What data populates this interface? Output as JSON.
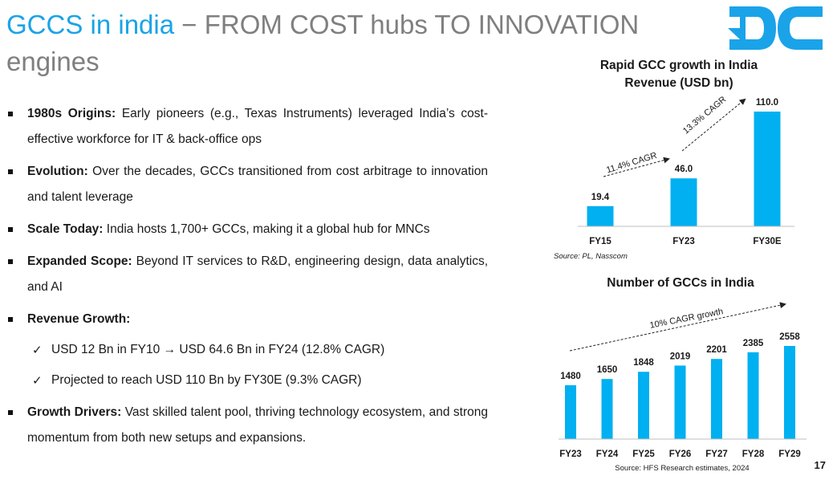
{
  "slide": {
    "title_accent": "GCCS in india",
    "title_dash": "−",
    "title_rest": "FROM COST hubs TO INNOVATION engines",
    "page_number": "17",
    "brand_color": "#1aa3e8"
  },
  "logo": {
    "icon": "dc-logo-icon"
  },
  "bullets": [
    {
      "label": "1980s Origins:",
      "text": " Early pioneers (e.g., Texas Instruments) leveraged India’s cost-effective workforce for IT & back-office ops"
    },
    {
      "label": "Evolution:",
      "text": " Over the decades, GCCs transitioned from cost arbitrage to innovation and talent leverage"
    },
    {
      "label": "Scale Today:",
      "text": " India hosts 1,700+ GCCs, making it a global hub for MNCs"
    },
    {
      "label": "Expanded Scope:",
      "text": " Beyond IT services to R&D, engineering design, data analytics, and AI"
    },
    {
      "label": "Revenue Growth:",
      "text": ""
    },
    {
      "label": "Growth Drivers:",
      "text": " Vast skilled talent pool, thriving technology ecosystem, and strong momentum from both new setups and expansions."
    }
  ],
  "revenue_subpoints": [
    "USD 12 Bn in FY10 → USD 64.6 Bn in FY24 (12.8% CAGR)",
    "Projected to reach USD 110 Bn by FY30E (9.3% CAGR)"
  ],
  "chart_data": [
    {
      "type": "bar",
      "title": "Rapid GCC growth in India",
      "subtitle": "Revenue (USD bn)",
      "categories": [
        "FY15",
        "FY23",
        "FY30E"
      ],
      "values": [
        19.4,
        46.0,
        110.0
      ],
      "value_labels": [
        "19.4",
        "46.0",
        "110.0"
      ],
      "ylim": [
        0,
        110
      ],
      "grid": false,
      "color": "#00b0f0",
      "annotations": [
        "11.4% CAGR",
        "13.3% CAGR"
      ],
      "source": "Source: PL, Nasscom"
    },
    {
      "type": "bar",
      "title": "Number of GCCs in India",
      "categories": [
        "FY23",
        "FY24",
        "FY25",
        "FY26",
        "FY27",
        "FY28",
        "FY29"
      ],
      "values": [
        1480,
        1650,
        1848,
        2019,
        2201,
        2385,
        2558
      ],
      "ylim": [
        0,
        2558
      ],
      "grid": false,
      "color": "#00b0f0",
      "annotations": [
        "10% CAGR growth"
      ],
      "source": "Source: HFS Research estimates, 2024"
    }
  ]
}
